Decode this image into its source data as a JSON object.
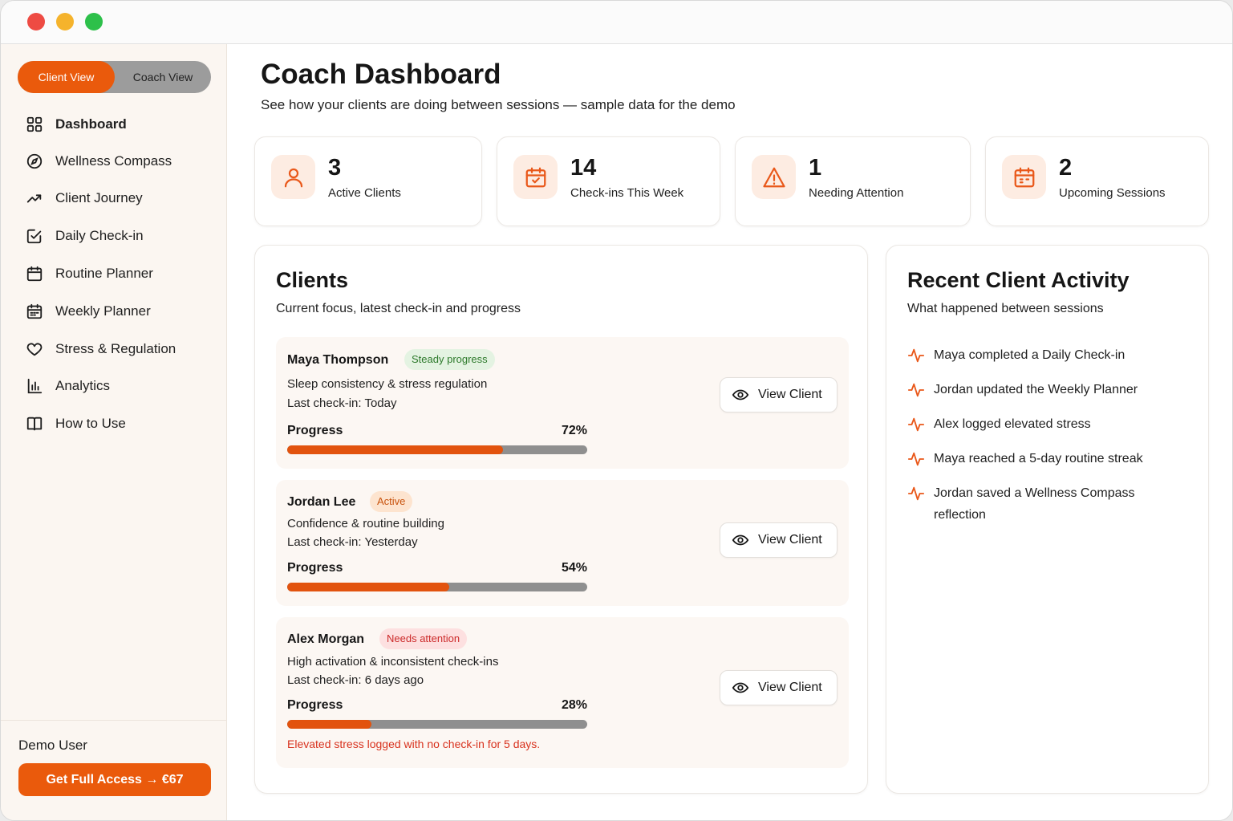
{
  "sidebar": {
    "toggle": {
      "client_label": "Client View",
      "coach_label": "Coach View"
    },
    "items": [
      {
        "label": "Dashboard",
        "icon": "grid-icon"
      },
      {
        "label": "Wellness Compass",
        "icon": "compass-icon"
      },
      {
        "label": "Client Journey",
        "icon": "trending-up-icon"
      },
      {
        "label": "Daily Check-in",
        "icon": "edit-square-icon"
      },
      {
        "label": "Routine Planner",
        "icon": "calendar-icon"
      },
      {
        "label": "Weekly Planner",
        "icon": "calendar-grid-icon"
      },
      {
        "label": "Stress & Regulation",
        "icon": "heart-icon"
      },
      {
        "label": "Analytics",
        "icon": "bar-chart-icon"
      },
      {
        "label": "How to Use",
        "icon": "book-icon"
      }
    ],
    "user": "Demo User",
    "access_button": "Get Full Access → €67"
  },
  "header": {
    "title": "Coach Dashboard",
    "subtitle": "See how your clients are doing between sessions — sample data for the demo"
  },
  "stats": [
    {
      "value": "3",
      "label": "Active Clients",
      "icon": "user-icon"
    },
    {
      "value": "14",
      "label": "Check-ins This Week",
      "icon": "calendar-check-icon"
    },
    {
      "value": "1",
      "label": "Needing Attention",
      "icon": "warning-icon"
    },
    {
      "value": "2",
      "label": "Upcoming Sessions",
      "icon": "calendar-icon"
    }
  ],
  "clients_panel": {
    "title": "Clients",
    "subtitle": "Current focus, latest check-in and progress",
    "progress_label": "Progress",
    "view_button": "View Client",
    "clients": [
      {
        "name": "Maya Thompson",
        "badge": "Steady progress",
        "focus": "Sleep consistency & stress regulation",
        "last_checkin": "Last check-in: Today",
        "progress_text": "72%",
        "progress": 0.72
      },
      {
        "name": "Jordan Lee",
        "badge": "Active",
        "focus": "Confidence & routine building",
        "last_checkin": "Last check-in: Yesterday",
        "progress_text": "54%",
        "progress": 0.54
      },
      {
        "name": "Alex Morgan",
        "badge": "Needs attention",
        "focus": "High activation & inconsistent check-ins",
        "last_checkin": "Last check-in: 6 days ago",
        "progress_text": "28%",
        "progress": 0.28,
        "alert": "Elevated stress logged with no check-in for 5 days."
      }
    ]
  },
  "activity_panel": {
    "title": "Recent Client Activity",
    "subtitle": "What happened between sessions",
    "items": [
      "Maya completed a Daily Check-in",
      "Jordan updated the Weekly Planner",
      "Alex logged elevated stress",
      "Maya reached a 5-day routine streak",
      "Jordan saved a Wellness Compass reflection"
    ]
  },
  "colors": {
    "accent": "#ea5a0c",
    "accent_soft": "#fdece2",
    "alert": "#d8321e"
  }
}
